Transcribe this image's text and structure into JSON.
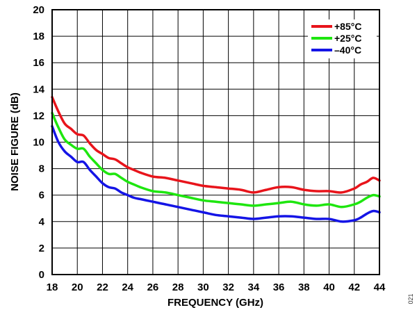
{
  "chart_data": {
    "type": "line",
    "title": "",
    "xlabel": "FREQUENCY (GHz)",
    "ylabel": "NOISE FIGURE (dB)",
    "xlim": [
      18,
      44
    ],
    "ylim": [
      0,
      20
    ],
    "x_ticks": [
      18,
      20,
      22,
      24,
      26,
      28,
      30,
      32,
      34,
      36,
      38,
      40,
      42,
      44
    ],
    "y_ticks": [
      0,
      2,
      4,
      6,
      8,
      10,
      12,
      14,
      16,
      18,
      20
    ],
    "x_grid_step": 2,
    "y_grid_step": 2,
    "grid": true,
    "legend_position": "top-right",
    "figure_id": "021",
    "series": [
      {
        "name": "+85°C",
        "color": "#e8141b",
        "x": [
          18,
          18.5,
          19,
          19.5,
          20,
          20.5,
          21,
          21.5,
          22,
          22.5,
          23,
          23.5,
          24,
          24.5,
          25,
          26,
          27,
          28,
          29,
          30,
          31,
          32,
          33,
          34,
          35,
          36,
          37,
          38,
          39,
          40,
          41,
          42,
          42.5,
          43,
          43.5,
          44
        ],
        "values": [
          13.4,
          12.3,
          11.4,
          11.0,
          10.6,
          10.5,
          9.9,
          9.4,
          9.1,
          8.8,
          8.7,
          8.4,
          8.1,
          7.9,
          7.7,
          7.4,
          7.3,
          7.1,
          6.9,
          6.7,
          6.6,
          6.5,
          6.4,
          6.2,
          6.4,
          6.6,
          6.6,
          6.4,
          6.3,
          6.3,
          6.2,
          6.5,
          6.8,
          7.0,
          7.3,
          7.1
        ]
      },
      {
        "name": "+25°C",
        "color": "#1ee60f",
        "x": [
          18,
          18.5,
          19,
          19.5,
          20,
          20.5,
          21,
          21.5,
          22,
          22.5,
          23,
          23.5,
          24,
          24.5,
          25,
          26,
          27,
          28,
          29,
          30,
          31,
          32,
          33,
          34,
          35,
          36,
          37,
          38,
          39,
          40,
          41,
          42,
          42.5,
          43,
          43.5,
          44
        ],
        "values": [
          12.2,
          11.1,
          10.2,
          9.8,
          9.5,
          9.5,
          8.9,
          8.4,
          7.9,
          7.6,
          7.6,
          7.3,
          7.0,
          6.8,
          6.6,
          6.3,
          6.2,
          6.0,
          5.8,
          5.6,
          5.5,
          5.4,
          5.3,
          5.2,
          5.3,
          5.4,
          5.5,
          5.3,
          5.2,
          5.3,
          5.1,
          5.3,
          5.5,
          5.8,
          6.0,
          5.9
        ]
      },
      {
        "name": "–40°C",
        "color": "#1414e6",
        "x": [
          18,
          18.5,
          19,
          19.5,
          20,
          20.5,
          21,
          21.5,
          22,
          22.5,
          23,
          23.5,
          24,
          24.5,
          25,
          26,
          27,
          28,
          29,
          30,
          31,
          32,
          33,
          34,
          35,
          36,
          37,
          38,
          39,
          40,
          41,
          42,
          42.5,
          43,
          43.5,
          44
        ],
        "values": [
          11.2,
          10.0,
          9.3,
          8.9,
          8.5,
          8.5,
          7.9,
          7.4,
          6.9,
          6.6,
          6.5,
          6.2,
          6.0,
          5.8,
          5.7,
          5.5,
          5.3,
          5.1,
          4.9,
          4.7,
          4.5,
          4.4,
          4.3,
          4.2,
          4.3,
          4.4,
          4.4,
          4.3,
          4.2,
          4.2,
          4.0,
          4.1,
          4.3,
          4.6,
          4.8,
          4.7
        ]
      }
    ]
  }
}
